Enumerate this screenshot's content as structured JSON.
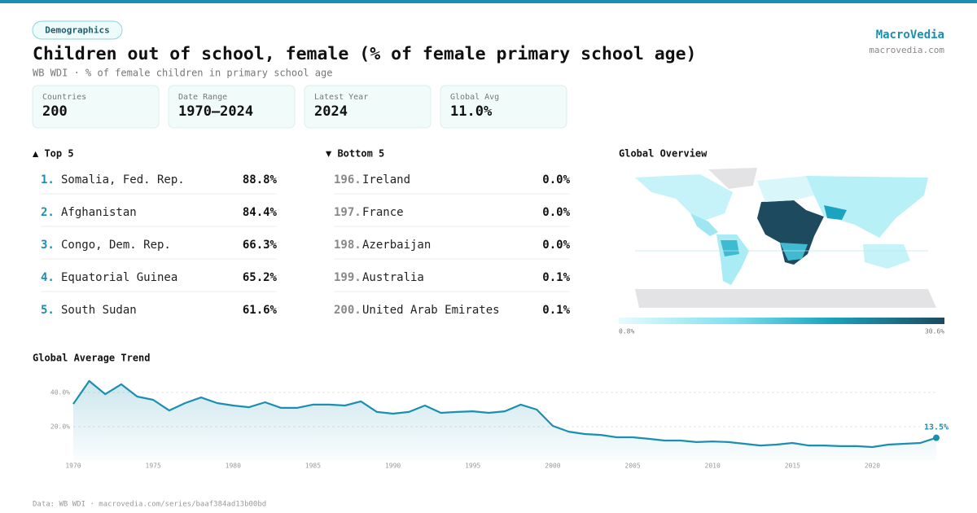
{
  "header": {
    "badge": "Demographics",
    "title": "Children out of school, female (% of female primary school age)",
    "subtitle": "WB WDI · % of female children in primary school age",
    "brand": "MacroVedia",
    "site": "macrovedia.com"
  },
  "stats": [
    {
      "label": "Countries",
      "value": "200"
    },
    {
      "label": "Date Range",
      "value": "1970–2024"
    },
    {
      "label": "Latest Year",
      "value": "2024"
    },
    {
      "label": "Global Avg",
      "value": "11.0%"
    }
  ],
  "top": {
    "title": "▲ Top 5",
    "items": [
      {
        "rank": "1.",
        "name": "Somalia, Fed. Rep.",
        "value": "88.8%"
      },
      {
        "rank": "2.",
        "name": "Afghanistan",
        "value": "84.4%"
      },
      {
        "rank": "3.",
        "name": "Congo, Dem. Rep.",
        "value": "66.3%"
      },
      {
        "rank": "4.",
        "name": "Equatorial Guinea",
        "value": "65.2%"
      },
      {
        "rank": "5.",
        "name": "South Sudan",
        "value": "61.6%"
      }
    ]
  },
  "bottom": {
    "title": "▼ Bottom 5",
    "items": [
      {
        "rank": "196.",
        "name": "Ireland",
        "value": "0.0%"
      },
      {
        "rank": "197.",
        "name": "France",
        "value": "0.0%"
      },
      {
        "rank": "198.",
        "name": "Azerbaijan",
        "value": "0.0%"
      },
      {
        "rank": "199.",
        "name": "Australia",
        "value": "0.1%"
      },
      {
        "rank": "200.",
        "name": "United Arab Emirates",
        "value": "0.1%"
      }
    ]
  },
  "map": {
    "title": "Global Overview",
    "legend_min": "0.8%",
    "legend_max": "30.6%"
  },
  "chart_data": {
    "type": "line",
    "title": "Global Average Trend",
    "color": "#1a8fb0",
    "grid": true,
    "x": [
      1970,
      1971,
      1972,
      1973,
      1974,
      1975,
      1976,
      1977,
      1978,
      1979,
      1980,
      1981,
      1982,
      1983,
      1984,
      1985,
      1986,
      1987,
      1988,
      1989,
      1990,
      1991,
      1992,
      1993,
      1994,
      1995,
      1996,
      1997,
      1998,
      1999,
      2000,
      2001,
      2002,
      2003,
      2004,
      2005,
      2006,
      2007,
      2008,
      2009,
      2010,
      2011,
      2012,
      2013,
      2014,
      2015,
      2016,
      2017,
      2018,
      2019,
      2020,
      2021,
      2022,
      2023,
      2024
    ],
    "values": [
      33.3,
      46.7,
      39,
      44.8,
      37.6,
      35.7,
      29.5,
      33.8,
      37.1,
      33.8,
      32.4,
      31.4,
      34.3,
      31,
      31,
      32.9,
      32.9,
      32.4,
      34.8,
      28.6,
      27.6,
      28.6,
      32.4,
      28.1,
      28.6,
      29,
      28.1,
      29,
      32.9,
      30,
      20.5,
      17.1,
      15.7,
      15.2,
      13.8,
      13.8,
      12.9,
      11.9,
      11.9,
      11,
      11.4,
      11,
      10,
      9,
      9.5,
      10.5,
      9,
      9,
      8.6,
      8.6,
      8.1,
      9.5,
      10,
      10.5,
      13.5
    ],
    "value_labels": [
      null,
      null,
      null,
      null,
      null,
      null,
      null,
      null,
      null,
      null,
      null,
      null,
      null,
      null,
      null,
      null,
      null,
      null,
      null,
      null,
      null,
      null,
      null,
      null,
      null,
      null,
      null,
      null,
      null,
      null,
      null,
      null,
      null,
      null,
      null,
      null,
      null,
      null,
      null,
      null,
      null,
      null,
      null,
      null,
      null,
      null,
      null,
      null,
      null,
      null,
      null,
      null,
      null,
      null,
      "13.5%"
    ],
    "xlim": [
      1970,
      2024
    ],
    "xticks": [
      1970,
      1975,
      1980,
      1985,
      1990,
      1995,
      2000,
      2005,
      2010,
      2015,
      2020
    ],
    "ylim": [
      0,
      48
    ],
    "yticks": [
      {
        "value": 20,
        "label": "20.0%"
      },
      {
        "value": 40,
        "label": "40.0%"
      }
    ]
  },
  "footer": "Data: WB WDI · macrovedia.com/series/baaf384ad13b00bd"
}
